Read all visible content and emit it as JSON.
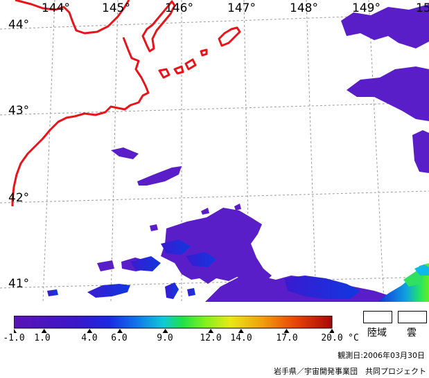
{
  "map": {
    "lon_labels": [
      "144°",
      "145°",
      "146°",
      "147°",
      "148°",
      "149°",
      "15"
    ],
    "lat_labels": [
      "44°",
      "43°",
      "42°",
      "41°"
    ]
  },
  "colorbar": {
    "ticks": [
      "-1.0",
      "1.0",
      "4.0",
      "6.0",
      "9.0",
      "12.0",
      "14.0",
      "17.0",
      "20.0"
    ],
    "unit": "°C",
    "range": [
      -1.0,
      20.0
    ]
  },
  "legend": {
    "land": "陸域",
    "cloud": "雲"
  },
  "footer": {
    "date": "観測日:2006年03月30日",
    "credit": "岩手県／宇宙開発事業団　共同プロジェクト"
  },
  "colors": {
    "coastline": "#e8141a",
    "grid": "#9a9a9a",
    "cold_sst": "#5a1ec8"
  }
}
